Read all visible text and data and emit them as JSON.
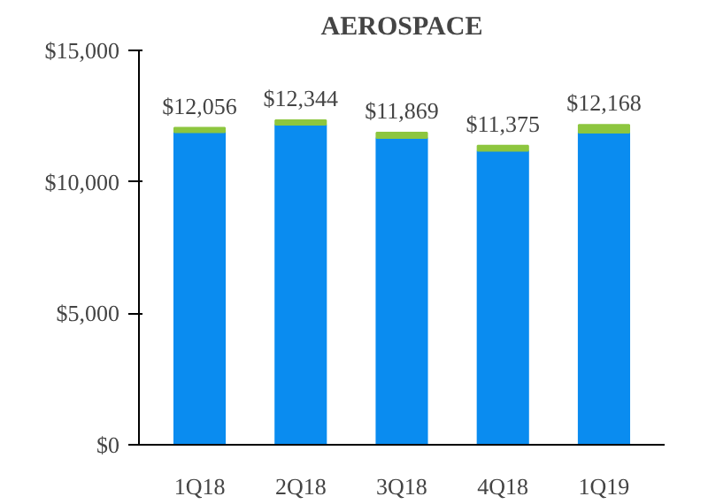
{
  "chart_data": {
    "type": "bar",
    "title": "AEROSPACE",
    "stacked": true,
    "categories": [
      "1Q18",
      "2Q18",
      "3Q18",
      "4Q18",
      "1Q19"
    ],
    "series": [
      {
        "color": "#0a8cf0",
        "values": [
          11886,
          12174,
          11669,
          11185,
          11868
        ]
      },
      {
        "color": "#8dc63f",
        "values": [
          170,
          170,
          200,
          190,
          300
        ]
      }
    ],
    "totals": [
      "$12,056",
      "$12,344",
      "$11,869",
      "$11,375",
      "$12,168"
    ],
    "ylim": [
      0,
      15000
    ],
    "yticks": [
      {
        "value": 0,
        "label": "$0"
      },
      {
        "value": 5000,
        "label": "$5,000"
      },
      {
        "value": 10000,
        "label": "$10,000"
      },
      {
        "value": 15000,
        "label": "$15,000"
      }
    ],
    "grid": false
  }
}
